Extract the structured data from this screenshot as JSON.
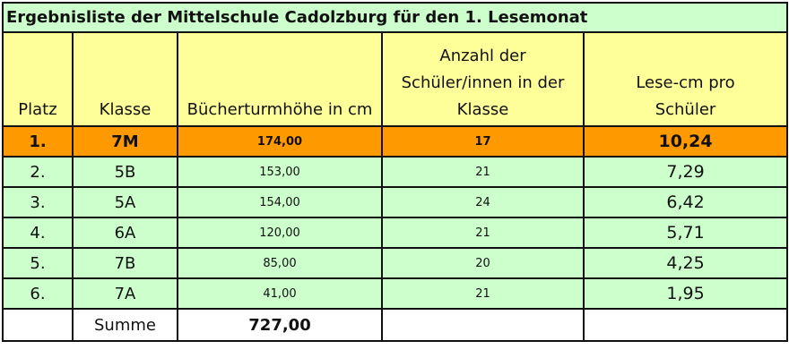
{
  "title": "Ergebnisliste der Mittelschule Cadolzburg für den 1. Lesemonat",
  "columns": [
    "Platz",
    "Klasse",
    "Bücherturmhöhe in cm",
    "Anzahl der Schüler/innen in der Klasse",
    "Lese-cm pro Schüler"
  ],
  "rows": [
    {
      "platz": "1.",
      "klasse": "7M",
      "hoehe": "174,00",
      "anzahl": "17",
      "lesecm": "10,24"
    },
    {
      "platz": "2.",
      "klasse": "5B",
      "hoehe": "153,00",
      "anzahl": "21",
      "lesecm": "7,29"
    },
    {
      "platz": "3.",
      "klasse": "5A",
      "hoehe": "154,00",
      "anzahl": "24",
      "lesecm": "6,42"
    },
    {
      "platz": "4.",
      "klasse": "6A",
      "hoehe": "120,00",
      "anzahl": "21",
      "lesecm": "5,71"
    },
    {
      "platz": "5.",
      "klasse": "7B",
      "hoehe": "85,00",
      "anzahl": "20",
      "lesecm": "4,25"
    },
    {
      "platz": "6.",
      "klasse": "7A",
      "hoehe": "41,00",
      "anzahl": "21",
      "lesecm": "1,95"
    }
  ],
  "sum": {
    "label": "Summe",
    "value": "727,00"
  },
  "colors": {
    "title_bg": "#ccffcc",
    "header_bg": "#ffff99",
    "winner_bg": "#ff9900",
    "row_bg": "#ccffcc"
  }
}
